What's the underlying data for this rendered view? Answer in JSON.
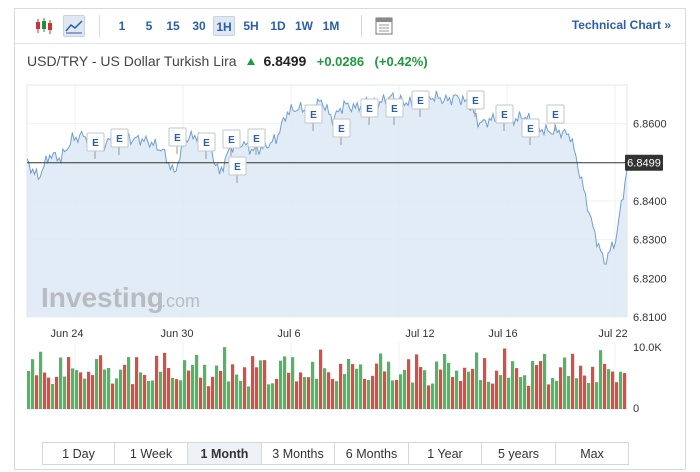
{
  "toolbar": {
    "icons": [
      "candlestick-icon",
      "area-chart-icon",
      "calendar-icon"
    ],
    "timeframes": [
      {
        "label": "1",
        "active": false
      },
      {
        "label": "5",
        "active": false
      },
      {
        "label": "15",
        "active": false
      },
      {
        "label": "30",
        "active": false
      },
      {
        "label": "1H",
        "active": true
      },
      {
        "label": "5H",
        "active": false
      },
      {
        "label": "1D",
        "active": false
      },
      {
        "label": "1W",
        "active": false
      },
      {
        "label": "1M",
        "active": false
      }
    ],
    "technical_chart_label": "Technical Chart »"
  },
  "header": {
    "title": "USD/TRY - US Dollar Turkish Lira",
    "price": "6.8499",
    "change_abs": "+0.0286",
    "change_pct": "(+0.42%)"
  },
  "colors": {
    "accent": "#2a5ea8",
    "up": "#1f9a3d",
    "line": "#6f9fce",
    "area": "#dde9f4",
    "vol_up": "#5dae6a",
    "vol_down": "#c9534d"
  },
  "watermark": {
    "text": "Investing",
    "suffix": ".com"
  },
  "chart_data": {
    "type": "area",
    "title": "",
    "xlabel": "",
    "ylabel": "",
    "ylim": [
      6.81,
      6.87
    ],
    "y_ticks": [
      "6.8600",
      "6.8400",
      "6.8300",
      "6.8200",
      "6.8100"
    ],
    "x_ticks": [
      "Jun 24",
      "Jun 30",
      "Jul 6",
      "Jul 12",
      "Jul 16",
      "Jul 22"
    ],
    "current_price_label": "6.8499",
    "current_price": 6.8499,
    "series": [
      {
        "values": [
          6.85,
          6.846,
          6.852,
          6.851,
          6.856,
          6.857,
          6.854,
          6.855,
          6.857,
          6.856,
          6.856,
          6.855,
          6.853,
          6.847,
          6.856,
          6.857,
          6.855,
          6.847,
          6.854,
          6.855,
          6.853,
          6.854,
          6.856,
          6.863,
          6.864,
          6.863,
          6.866,
          6.861,
          6.865,
          6.864,
          6.866,
          6.865,
          6.867,
          6.866,
          6.865,
          6.866,
          6.867,
          6.866,
          6.867,
          6.865,
          6.86,
          6.861,
          6.862,
          6.861,
          6.862,
          6.859,
          6.858,
          6.858,
          6.857,
          6.845,
          6.833,
          6.824,
          6.83,
          6.848
        ]
      }
    ],
    "events": {
      "label": "E",
      "count": 20
    },
    "volume": {
      "y_ticks": [
        "10.0K",
        "0"
      ],
      "ylim": [
        0,
        10000
      ]
    }
  },
  "range_tabs": [
    {
      "label": "1 Day",
      "active": false
    },
    {
      "label": "1 Week",
      "active": false
    },
    {
      "label": "1 Month",
      "active": true
    },
    {
      "label": "3 Months",
      "active": false
    },
    {
      "label": "6 Months",
      "active": false
    },
    {
      "label": "1 Year",
      "active": false
    },
    {
      "label": "5 years",
      "active": false
    },
    {
      "label": "Max",
      "active": false
    }
  ]
}
